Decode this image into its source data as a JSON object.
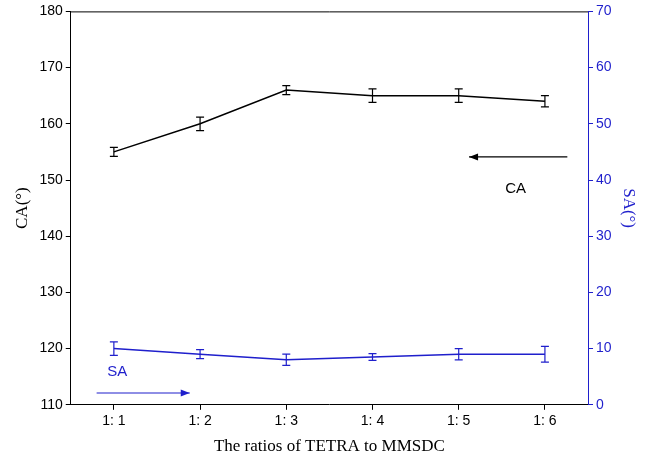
{
  "chart_data": {
    "type": "line",
    "x_label": "The ratios of TETRA to MMSDC",
    "y_label": "CA(°)",
    "y2_label": "SA(°)",
    "categories": [
      "1: 1",
      "1: 2",
      "1: 3",
      "1: 4",
      "1: 5",
      "1: 6"
    ],
    "series": [
      {
        "name": "CA",
        "color": "#000000",
        "values": [
          155,
          160,
          166,
          165,
          165,
          164
        ],
        "errors": [
          0.8,
          1.2,
          0.8,
          1.2,
          1.2,
          1.0
        ],
        "marker": "none"
      },
      {
        "name": "SA",
        "color": "#1f1fcc",
        "values": [
          10,
          9,
          8,
          8.5,
          9,
          9
        ],
        "errors": [
          1.2,
          0.8,
          1.0,
          0.6,
          1.0,
          1.4
        ],
        "marker": "none",
        "axis": "y2"
      }
    ],
    "ylim": [
      110,
      180
    ],
    "yticks": [
      110,
      120,
      130,
      140,
      150,
      160,
      170,
      180
    ],
    "y2lim": [
      0,
      70
    ],
    "y2ticks": [
      0,
      10,
      20,
      30,
      40,
      50,
      60,
      70
    ],
    "grid": false
  }
}
